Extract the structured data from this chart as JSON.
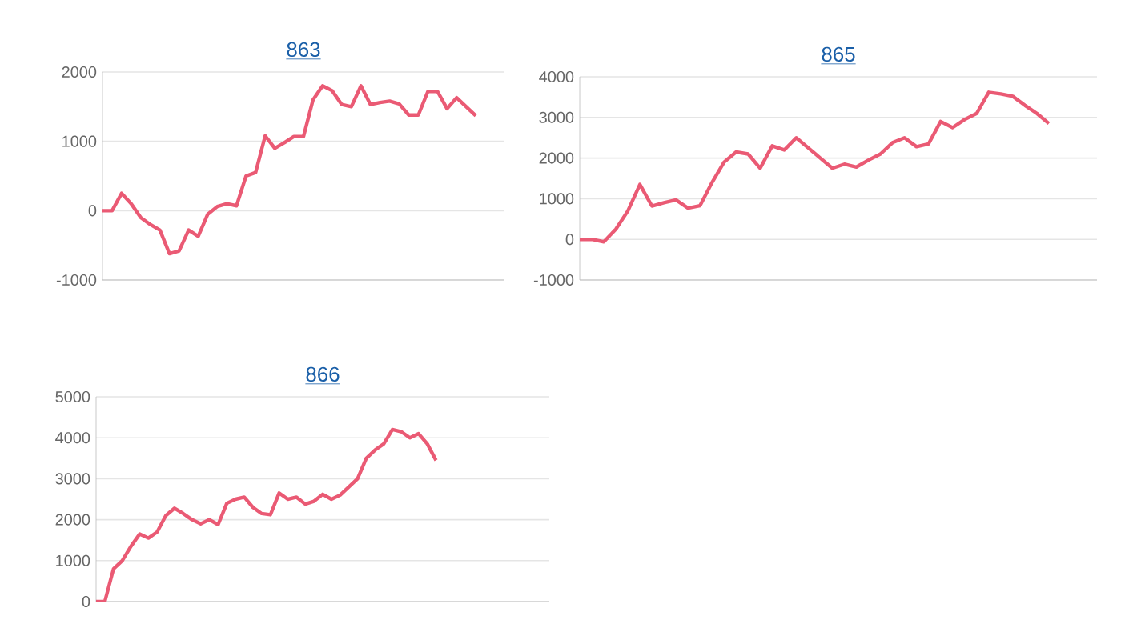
{
  "chart_data": [
    {
      "type": "line",
      "title": "863",
      "categories": [
        null,
        null,
        null,
        null,
        null,
        null,
        null,
        null,
        null,
        null,
        null,
        null,
        null,
        null,
        null,
        null,
        null,
        null,
        null,
        null,
        null,
        null,
        null,
        null,
        null,
        null,
        null,
        null,
        null,
        null,
        null,
        null,
        null,
        null,
        null,
        null,
        null,
        null,
        null,
        null,
        null,
        null,
        null
      ],
      "series": [
        {
          "color": "#ea5a74",
          "values": [
            0,
            0,
            250,
            100,
            -100,
            -200,
            -280,
            -620,
            -580,
            -280,
            -370,
            -50,
            60,
            100,
            70,
            500,
            550,
            1080,
            900,
            980,
            1070,
            1070,
            1600,
            1800,
            1730,
            1530,
            1500,
            1800,
            1530,
            1560,
            1580,
            1540,
            1380,
            1380,
            1720,
            1720,
            1470,
            1630,
            1500,
            1370,
            null,
            null,
            null
          ]
        }
      ],
      "ylim": [
        -1000,
        2000
      ],
      "yticks": [
        -1000,
        0,
        1000,
        2000
      ],
      "grid": "y",
      "tick_labels": "y"
    },
    {
      "type": "line",
      "title": "865",
      "categories": [
        null,
        null,
        null,
        null,
        null,
        null,
        null,
        null,
        null,
        null,
        null,
        null,
        null,
        null,
        null,
        null,
        null,
        null,
        null,
        null,
        null,
        null,
        null,
        null,
        null,
        null,
        null,
        null,
        null,
        null,
        null,
        null,
        null,
        null,
        null,
        null,
        null,
        null,
        null,
        null,
        null,
        null,
        null,
        null
      ],
      "series": [
        {
          "color": "#ea5a74",
          "values": [
            0,
            0,
            -60,
            250,
            700,
            1350,
            820,
            900,
            970,
            770,
            830,
            1400,
            1900,
            2150,
            2100,
            1750,
            2300,
            2200,
            2500,
            2250,
            2000,
            1750,
            1850,
            1780,
            1950,
            2100,
            2380,
            2500,
            2280,
            2350,
            2900,
            2750,
            2950,
            3100,
            3620,
            3580,
            3520,
            3300,
            3100,
            2850,
            null,
            null,
            null,
            null
          ]
        }
      ],
      "ylim": [
        -1000,
        4000
      ],
      "yticks": [
        -1000,
        0,
        1000,
        2000,
        3000,
        4000
      ],
      "grid": "y",
      "tick_labels": "y"
    },
    {
      "type": "line",
      "title": "866",
      "categories": [
        null,
        null,
        null,
        null,
        null,
        null,
        null,
        null,
        null,
        null,
        null,
        null,
        null,
        null,
        null,
        null,
        null,
        null,
        null,
        null,
        null,
        null,
        null,
        null,
        null,
        null,
        null,
        null,
        null,
        null,
        null,
        null,
        null,
        null,
        null,
        null,
        null,
        null,
        null,
        null,
        null,
        null,
        null,
        null,
        null,
        null,
        null,
        null,
        null,
        null,
        null,
        null,
        null
      ],
      "series": [
        {
          "color": "#ea5a74",
          "values": [
            0,
            0,
            800,
            1000,
            1350,
            1650,
            1550,
            1700,
            2100,
            2280,
            2150,
            2000,
            1900,
            2000,
            1880,
            2400,
            2500,
            2550,
            2300,
            2150,
            2120,
            2650,
            2500,
            2550,
            2380,
            2450,
            2620,
            2500,
            2600,
            2800,
            3000,
            3500,
            3700,
            3850,
            4200,
            4150,
            4000,
            4100,
            3850,
            3450,
            null,
            null,
            null,
            null,
            null,
            null,
            null,
            null,
            null,
            null,
            null,
            null,
            null
          ]
        }
      ],
      "ylim": [
        0,
        5000
      ],
      "yticks": [
        0,
        1000,
        2000,
        3000,
        4000,
        5000
      ],
      "grid": "y",
      "tick_labels": "y"
    }
  ]
}
